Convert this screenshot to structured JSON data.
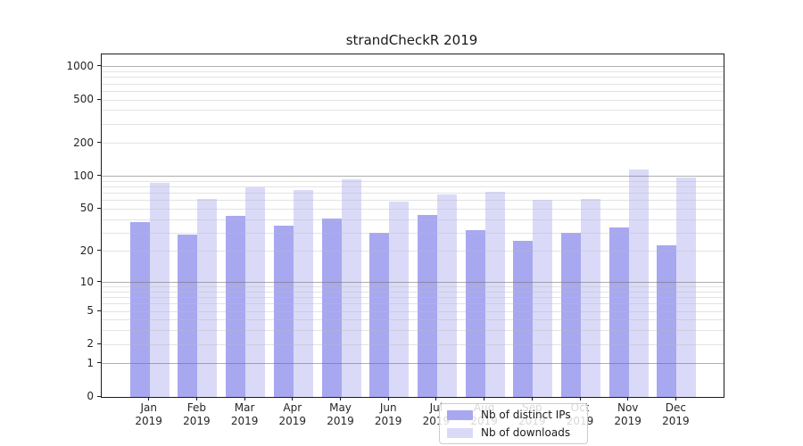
{
  "chart_data": {
    "type": "bar",
    "title": "strandCheckR 2019",
    "categories": [
      "Jan",
      "Feb",
      "Mar",
      "Apr",
      "May",
      "Jun",
      "Jul",
      "Aug",
      "Sep",
      "Oct",
      "Nov",
      "Dec"
    ],
    "year_label": "2019",
    "series": [
      {
        "name": "Nb of distinct IPs",
        "color": "#a8a8f0",
        "values": [
          38,
          29,
          43,
          35,
          41,
          30,
          44,
          32,
          25,
          30,
          34,
          23
        ]
      },
      {
        "name": "Nb of downloads",
        "color": "#dadaf8",
        "values": [
          87,
          62,
          79,
          75,
          94,
          59,
          68,
          72,
          61,
          62,
          115,
          98
        ]
      }
    ],
    "y_axis": {
      "scale": "log1p",
      "tick_values": [
        0,
        1,
        2,
        5,
        10,
        20,
        50,
        100,
        200,
        500,
        1000
      ],
      "major_grid_values": [
        1,
        10,
        100,
        1000
      ],
      "minor_grid_values": [
        2,
        3,
        4,
        5,
        6,
        7,
        8,
        9,
        20,
        30,
        40,
        50,
        60,
        70,
        80,
        90,
        200,
        300,
        400,
        500,
        600,
        700,
        800,
        900
      ]
    },
    "legend": {
      "position": "lower-center"
    },
    "grid": true
  }
}
